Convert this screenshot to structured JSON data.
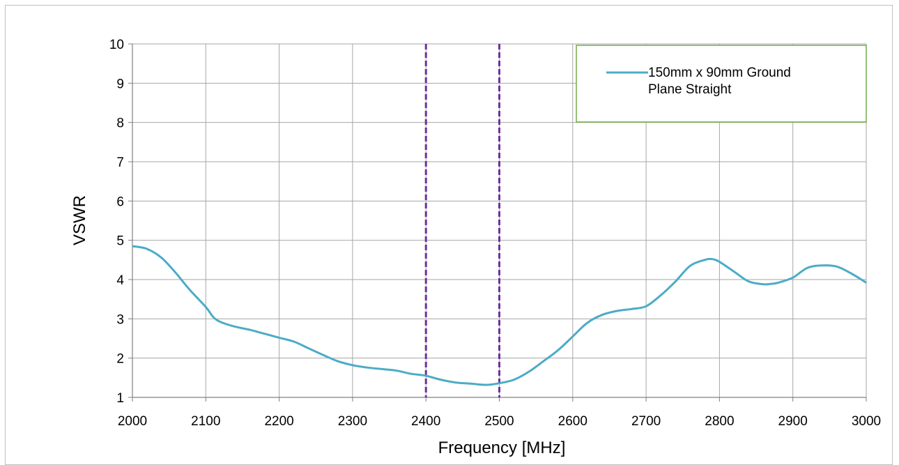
{
  "chart_data": {
    "type": "line",
    "title": "",
    "xlabel": "Frequency [MHz]",
    "ylabel": "VSWR",
    "xlim": [
      2000,
      3000
    ],
    "ylim": [
      1,
      10
    ],
    "xticks": [
      2000,
      2100,
      2200,
      2300,
      2400,
      2500,
      2600,
      2700,
      2800,
      2900,
      3000
    ],
    "yticks": [
      1,
      2,
      3,
      4,
      5,
      6,
      7,
      8,
      9,
      10
    ],
    "grid": true,
    "legend_position": "top-right",
    "reference_lines": {
      "x": [
        2400,
        2500
      ],
      "color": "#7030a0",
      "style": "dashed"
    },
    "series": [
      {
        "name": "150mm x 90mm Ground Plane Straight",
        "color": "#4bacc6",
        "x": [
          2000,
          2020,
          2040,
          2060,
          2070,
          2080,
          2100,
          2110,
          2120,
          2140,
          2160,
          2180,
          2200,
          2220,
          2240,
          2260,
          2280,
          2300,
          2320,
          2340,
          2360,
          2380,
          2400,
          2420,
          2440,
          2460,
          2480,
          2490,
          2500,
          2520,
          2540,
          2560,
          2580,
          2600,
          2620,
          2640,
          2660,
          2680,
          2700,
          2720,
          2740,
          2760,
          2780,
          2790,
          2800,
          2820,
          2840,
          2860,
          2870,
          2880,
          2900,
          2920,
          2940,
          2960,
          2980,
          3000
        ],
        "y": [
          4.85,
          4.78,
          4.55,
          4.15,
          3.92,
          3.7,
          3.3,
          3.05,
          2.92,
          2.8,
          2.72,
          2.62,
          2.52,
          2.42,
          2.25,
          2.08,
          1.92,
          1.82,
          1.76,
          1.72,
          1.68,
          1.6,
          1.55,
          1.45,
          1.38,
          1.35,
          1.32,
          1.33,
          1.36,
          1.45,
          1.65,
          1.92,
          2.2,
          2.55,
          2.9,
          3.1,
          3.2,
          3.25,
          3.32,
          3.6,
          3.95,
          4.35,
          4.5,
          4.52,
          4.45,
          4.2,
          3.95,
          3.88,
          3.89,
          3.92,
          4.05,
          4.3,
          4.36,
          4.33,
          4.15,
          3.92
        ]
      }
    ]
  }
}
